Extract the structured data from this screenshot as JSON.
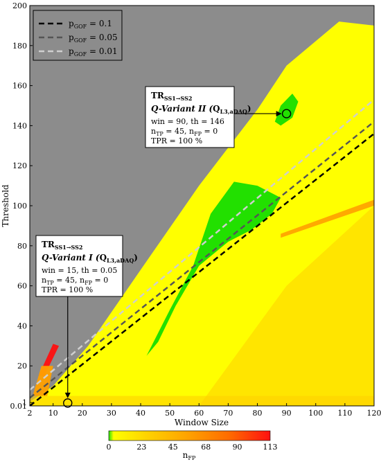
{
  "chart_data": {
    "type": "heatmap",
    "xlabel": "Window Size",
    "ylabel": "Threshold",
    "xlim": [
      2,
      120
    ],
    "ylim": [
      0.01,
      200
    ],
    "x_ticks": [
      "2",
      "10",
      "20",
      "30",
      "40",
      "50",
      "60",
      "70",
      "80",
      "90",
      "100",
      "110",
      "120"
    ],
    "x_tick_values": [
      2,
      10,
      20,
      30,
      40,
      50,
      60,
      70,
      80,
      90,
      100,
      110,
      120
    ],
    "y_ticks": [
      "0.01",
      "1",
      "20",
      "40",
      "60",
      "80",
      "100",
      "120",
      "140",
      "160",
      "180",
      "200"
    ],
    "y_tick_values": [
      0.01,
      1,
      20,
      40,
      60,
      80,
      100,
      120,
      140,
      160,
      180,
      200
    ],
    "background_color": "#8c8c8c",
    "colorbar": {
      "label": "n",
      "label_sub": "FP",
      "ticks": [
        "0",
        "23",
        "45",
        "68",
        "90",
        "113"
      ],
      "tick_values": [
        0,
        23,
        45,
        68,
        90,
        113
      ],
      "colors": [
        "#22e000",
        "#ffff00",
        "#ffd000",
        "#ffa000",
        "#ff6a00",
        "#ff1010"
      ]
    },
    "legend": {
      "placement": "top-left",
      "entries": [
        {
          "label": "p",
          "sub": "GOF",
          "suffix": " = 0.1",
          "color": "#000000"
        },
        {
          "label": "p",
          "sub": "GOF",
          "suffix": " = 0.05",
          "color": "#555555"
        },
        {
          "label": "p",
          "sub": "GOF",
          "suffix": " = 0.01",
          "color": "#cfcfcf"
        }
      ]
    },
    "lines": [
      {
        "name": "pGOF = 0.1",
        "color": "#000000",
        "x": [
          2,
          120
        ],
        "y": [
          0.01,
          136
        ]
      },
      {
        "name": "pGOF = 0.05",
        "color": "#555555",
        "x": [
          2,
          120
        ],
        "y": [
          4,
          142
        ]
      },
      {
        "name": "pGOF = 0.01",
        "color": "#cfcfcf",
        "x": [
          2,
          120
        ],
        "y": [
          8,
          153
        ]
      }
    ],
    "regions": {
      "yellow": [
        [
          2,
          0.01
        ],
        [
          120,
          0.01
        ],
        [
          120,
          190
        ],
        [
          108,
          192
        ],
        [
          90,
          170
        ],
        [
          80,
          148
        ],
        [
          60,
          110
        ],
        [
          40,
          68
        ],
        [
          22,
          30
        ],
        [
          10,
          10
        ],
        [
          2,
          2
        ]
      ],
      "green": [
        [
          42,
          25
        ],
        [
          50,
          48
        ],
        [
          58,
          70
        ],
        [
          64,
          96
        ],
        [
          72,
          112
        ],
        [
          80,
          110
        ],
        [
          88,
          104
        ],
        [
          85,
          96
        ],
        [
          78,
          88
        ],
        [
          70,
          82
        ],
        [
          60,
          70
        ],
        [
          52,
          50
        ],
        [
          46,
          32
        ]
      ],
      "green_upper": [
        [
          86,
          142
        ],
        [
          88,
          150
        ],
        [
          92,
          156
        ],
        [
          94,
          152
        ],
        [
          92,
          144
        ],
        [
          88,
          140
        ]
      ],
      "orange_streak": [
        [
          88,
          86
        ],
        [
          120,
          103
        ],
        [
          120,
          100
        ],
        [
          88,
          84
        ]
      ],
      "red_patch": [
        [
          5,
          15
        ],
        [
          10,
          31
        ],
        [
          12,
          30
        ],
        [
          7,
          15
        ]
      ]
    },
    "annotations": [
      {
        "title": "TR",
        "title_sub": "SS1→SS2",
        "variant": "Q-Variant II (",
        "variant_q": "Q",
        "variant_sub": "L3,aDAQ",
        "variant_end": ")",
        "line1": "win = 90, th = 146",
        "line2a": "n",
        "line2a_sub": "TP",
        "line2b": " = 45, n",
        "line2b_sub": "FP",
        "line2c": " = 0",
        "line3": "TPR = 100 %",
        "point": [
          90,
          146
        ]
      },
      {
        "title": "TR",
        "title_sub": "SS1→SS2",
        "variant": "Q-Variant I (",
        "variant_q": "Q",
        "variant_sub": "L3,aDAQ",
        "variant_end": ")",
        "line1": "win = 15, th = 0.05",
        "line2a": "n",
        "line2a_sub": "TP",
        "line2b": " = 45, n",
        "line2b_sub": "FP",
        "line2c": " = 0",
        "line3": "TPR = 100 %",
        "point": [
          15,
          0.05
        ]
      }
    ]
  }
}
